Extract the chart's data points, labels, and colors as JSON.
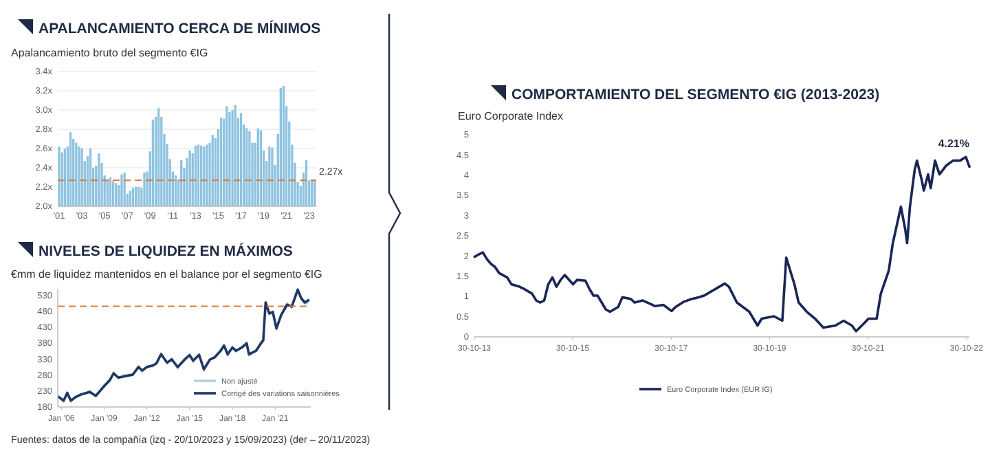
{
  "chart_data": [
    {
      "type": "bar",
      "title": "APALANCAMIENTO CERCA DE MÍNIMOS",
      "subtitle": "Apalancamiento bruto del segmento €IG",
      "categories": [
        "'01",
        null,
        null,
        null,
        null,
        null,
        null,
        null,
        "'03",
        null,
        null,
        null,
        null,
        null,
        null,
        null,
        "'05",
        null,
        null,
        null,
        null,
        null,
        null,
        null,
        "'07",
        null,
        null,
        null,
        null,
        null,
        null,
        null,
        "'09",
        null,
        null,
        null,
        null,
        null,
        null,
        null,
        "'11",
        null,
        null,
        null,
        null,
        null,
        null,
        null,
        "'13",
        null,
        null,
        null,
        null,
        null,
        null,
        null,
        "'15",
        null,
        null,
        null,
        null,
        null,
        null,
        null,
        "'17",
        null,
        null,
        null,
        null,
        null,
        null,
        null,
        "'19",
        null,
        null,
        null,
        null,
        null,
        null,
        null,
        "'21",
        null,
        null,
        null,
        null,
        null,
        null,
        null,
        "'23",
        null,
        null
      ],
      "values": [
        2.62,
        2.56,
        2.6,
        2.62,
        2.77,
        2.7,
        2.66,
        2.62,
        2.6,
        2.47,
        2.52,
        2.6,
        2.4,
        2.42,
        2.55,
        2.45,
        2.32,
        2.28,
        2.3,
        2.26,
        2.24,
        2.22,
        2.33,
        2.35,
        2.13,
        2.16,
        2.19,
        2.2,
        2.2,
        2.19,
        2.35,
        2.36,
        2.57,
        2.9,
        2.93,
        3.02,
        2.93,
        2.75,
        2.65,
        2.49,
        2.36,
        2.32,
        2.28,
        2.48,
        2.4,
        2.5,
        2.58,
        2.55,
        2.63,
        2.64,
        2.63,
        2.62,
        2.64,
        2.66,
        2.74,
        2.71,
        2.8,
        2.92,
        2.91,
        3.04,
        2.98,
        3.0,
        3.05,
        2.92,
        2.97,
        2.85,
        2.81,
        2.78,
        2.66,
        2.66,
        2.81,
        2.79,
        2.58,
        2.47,
        2.62,
        2.61,
        2.43,
        2.75,
        3.23,
        3.25,
        3.04,
        2.88,
        2.64,
        2.45,
        2.25,
        2.21,
        2.35,
        2.48,
        2.27,
        2.28,
        2.27
      ],
      "color": "#8ec3e0",
      "ylim": [
        2.0,
        3.4
      ],
      "yticks": [
        {
          "value": 2.0,
          "label": "2.0x"
        },
        {
          "value": 2.2,
          "label": "2.2x"
        },
        {
          "value": 2.4,
          "label": "2.4x"
        },
        {
          "value": 2.6,
          "label": "2.6x"
        },
        {
          "value": 2.8,
          "label": "2.8x"
        },
        {
          "value": 3.0,
          "label": "3.0x"
        },
        {
          "value": 3.2,
          "label": "3.2x"
        },
        {
          "value": 3.4,
          "label": "3.4x"
        }
      ],
      "grid": "y",
      "ref_lines": [
        {
          "axis": "y",
          "value": 2.27,
          "label": "2.27x",
          "color": "#e07b39",
          "line_style": "dashed"
        }
      ]
    },
    {
      "type": "line",
      "title": "NIVELES DE LIQUIDEZ EN MÁXIMOS",
      "subtitle": "€mm de liquidez mantenidos en el balance por el segmento €IG",
      "x": [
        "2005-11",
        "2006-03",
        "2006-06",
        "2006-09",
        "2007-01",
        "2007-06",
        "2008-01",
        "2008-06",
        "2009-01",
        "2009-06",
        "2009-09",
        "2010-01",
        "2010-06",
        "2011-01",
        "2011-06",
        "2011-09",
        "2012-01",
        "2012-06",
        "2012-09",
        "2013-01",
        "2013-06",
        "2013-10",
        "2014-03",
        "2014-09",
        "2015-01",
        "2015-04",
        "2015-09",
        "2016-01",
        "2016-06",
        "2016-10",
        "2017-03",
        "2017-06",
        "2017-09",
        "2018-01",
        "2018-04",
        "2018-09",
        "2019-01",
        "2019-03",
        "2019-09",
        "2020-01",
        "2020-03",
        "2020-05",
        "2020-08",
        "2020-11",
        "2021-02",
        "2021-06",
        "2021-11",
        "2022-03",
        "2022-08",
        "2022-11",
        "2023-02",
        "2023-05"
      ],
      "series": [
        {
          "name": "Non ajusté",
          "color": "#b5cde3",
          "values": [
            215,
            195,
            228,
            196,
            214,
            217,
            232,
            212,
            250,
            260,
            290,
            268,
            280,
            278,
            310,
            290,
            308,
            306,
            320,
            350,
            315,
            332,
            300,
            333,
            346,
            320,
            347,
            292,
            330,
            338,
            360,
            376,
            340,
            370,
            352,
            370,
            383,
            340,
            360,
            383,
            385,
            510,
            468,
            480,
            420,
            470,
            505,
            490,
            550,
            515,
            502,
            508
          ]
        },
        {
          "name": "Corrigé des variations saisonnières",
          "color": "#1f3864",
          "values": [
            211,
            200,
            224,
            200,
            211,
            220,
            227,
            215,
            245,
            265,
            285,
            272,
            276,
            281,
            305,
            294,
            305,
            310,
            316,
            345,
            319,
            329,
            305,
            329,
            342,
            325,
            343,
            298,
            328,
            335,
            355,
            372,
            345,
            366,
            356,
            366,
            379,
            345,
            356,
            379,
            389,
            507,
            473,
            477,
            426,
            467,
            500,
            494,
            547,
            520,
            507,
            514
          ]
        }
      ],
      "xlim": [
        "2005-10",
        "2023-07"
      ],
      "xticks": [
        {
          "value": "2006-01",
          "label": "Jan '06"
        },
        {
          "value": "2009-01",
          "label": "Jan '09"
        },
        {
          "value": "2012-01",
          "label": "Jan '12"
        },
        {
          "value": "2015-01",
          "label": "Jan '15"
        },
        {
          "value": "2018-01",
          "label": "Jan '18"
        },
        {
          "value": "2021-01",
          "label": "Jan '21"
        }
      ],
      "ylim": [
        180,
        550
      ],
      "yticks": [
        180,
        230,
        280,
        330,
        380,
        430,
        480,
        530
      ],
      "ref_lines": [
        {
          "axis": "y",
          "value": 495,
          "color": "#e07b39",
          "line_style": "dashed"
        }
      ],
      "legend": "bottom right"
    },
    {
      "type": "line",
      "title": "COMPORTAMIENTO DEL SEGMENTO €IG (2013-2023)",
      "subtitle": "Euro Corporate Index",
      "series": [
        {
          "name": "Euro Corporate Index (EUR IG)",
          "color": "#1a2656",
          "x": [
            "2013-11",
            "2013-12",
            "2014-01",
            "2014-02",
            "2014-03",
            "2014-04",
            "2014-05",
            "2014-07",
            "2014-08",
            "2014-10",
            "2014-11",
            "2015-01",
            "2015-02",
            "2015-03",
            "2015-04",
            "2015-05",
            "2015-06",
            "2015-07",
            "2015-08",
            "2015-09",
            "2015-11",
            "2015-12",
            "2016-02",
            "2016-03",
            "2016-04",
            "2016-05",
            "2016-07",
            "2016-08",
            "2016-10",
            "2016-11",
            "2017-01",
            "2017-02",
            "2017-04",
            "2017-06",
            "2017-07",
            "2017-09",
            "2017-11",
            "2017-12",
            "2018-02",
            "2018-04",
            "2018-05",
            "2018-07",
            "2018-12",
            "2019-01",
            "2019-03",
            "2019-06",
            "2019-08",
            "2019-09",
            "2019-12",
            "2020-02",
            "2020-03",
            "2020-05",
            "2020-06",
            "2020-08",
            "2020-10",
            "2020-12",
            "2021-03",
            "2021-05",
            "2021-07",
            "2021-08",
            "2021-10",
            "2021-11",
            "2022-01",
            "2022-02",
            "2022-04",
            "2022-05",
            "2022-06-30",
            "2022-08-01",
            "2022-08-15",
            "2022-09-05",
            "2022-10-10",
            "2022-10-27",
            "2022-11-30",
            "2022-12-17",
            "2023-01-18",
            "2023-02-06",
            "2023-03-10",
            "2023-04-12",
            "2023-06-02",
            "2023-07-22",
            "2023-09-12",
            "2023-10-25",
            "2023-11-20"
          ],
          "values": [
            1.98,
            2.04,
            2.09,
            1.92,
            1.81,
            1.73,
            1.58,
            1.47,
            1.3,
            1.24,
            1.19,
            1.07,
            0.9,
            0.85,
            0.9,
            1.3,
            1.47,
            1.24,
            1.41,
            1.53,
            1.3,
            1.41,
            1.39,
            1.19,
            1.02,
            1.02,
            0.68,
            0.62,
            0.74,
            0.98,
            0.94,
            0.85,
            0.9,
            0.81,
            0.76,
            0.79,
            0.64,
            0.74,
            0.87,
            0.94,
            0.96,
            1.02,
            1.32,
            1.24,
            0.85,
            0.62,
            0.28,
            0.45,
            0.51,
            0.4,
            1.96,
            1.3,
            0.85,
            0.62,
            0.45,
            0.23,
            0.28,
            0.4,
            0.28,
            0.14,
            0.34,
            0.45,
            0.45,
            1.07,
            1.64,
            2.32,
            3.22,
            2.66,
            2.32,
            3.22,
            4.13,
            4.36,
            3.9,
            3.62,
            4.02,
            3.68,
            4.36,
            4.02,
            4.24,
            4.36,
            4.36,
            4.45,
            4.21
          ]
        }
      ],
      "xlim": [
        "2013-10-30",
        "2023-11-20"
      ],
      "xticks": [
        {
          "value": "2013-10-30",
          "label": "30-10-13"
        },
        {
          "value": "2015-10-30",
          "label": "30-10-15"
        },
        {
          "value": "2017-10-30",
          "label": "30-10-17"
        },
        {
          "value": "2019-10-30",
          "label": "30-10-19"
        },
        {
          "value": "2021-10-30",
          "label": "30-10-21"
        },
        {
          "value": "2023-10-30",
          "label": "30-10-22"
        }
      ],
      "ylim": [
        0,
        5
      ],
      "yticks": [
        0,
        0.5,
        1,
        1.5,
        2,
        2.5,
        3,
        3.5,
        4,
        4.5,
        5
      ],
      "legend": "bottom",
      "annotations": [
        {
          "text": "4.21%",
          "x": "2023-11-20",
          "y": 4.21
        },
        "Fuentes: datos de la compañía (izq - 20/10/2023 y 15/09/2023) (der – 20/11/2023)"
      ]
    }
  ]
}
